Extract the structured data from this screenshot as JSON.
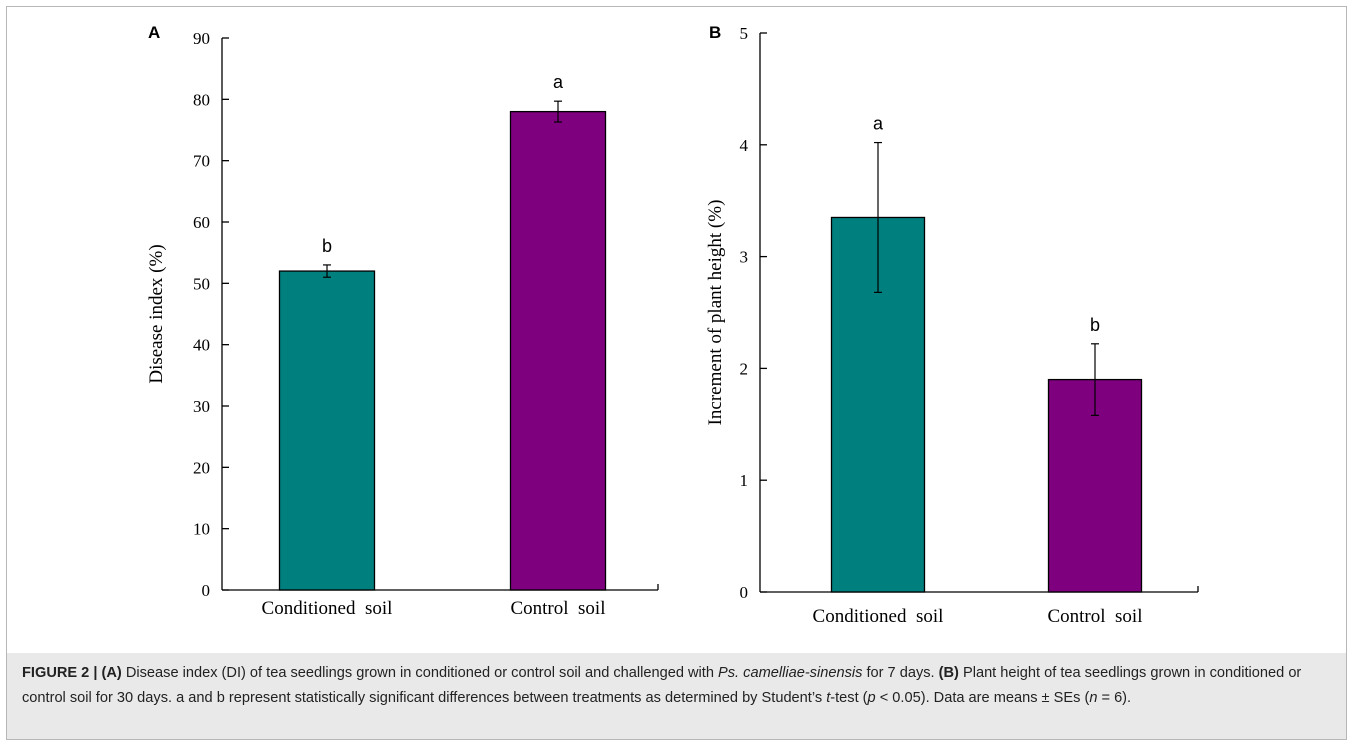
{
  "chart_data": [
    {
      "panel_label": "A",
      "type": "bar",
      "categories": [
        "Conditioned  soil",
        "Control  soil"
      ],
      "values": [
        52,
        78
      ],
      "errors": [
        1.0,
        1.7
      ],
      "significance": [
        "b",
        "a"
      ],
      "colors": [
        "#007f7f",
        "#7f007f"
      ],
      "ylabel": "Disease index (%)",
      "xlabel": "",
      "ylim": [
        0,
        90
      ],
      "yticks": [
        "0",
        "10",
        "20",
        "30",
        "40",
        "50",
        "60",
        "70",
        "80",
        "90"
      ],
      "grid": false
    },
    {
      "panel_label": "B",
      "type": "bar",
      "categories": [
        "Conditioned  soil",
        "Control  soil"
      ],
      "values": [
        3.35,
        1.9
      ],
      "errors": [
        0.67,
        0.32
      ],
      "significance": [
        "a",
        "b"
      ],
      "colors": [
        "#007f7f",
        "#7f007f"
      ],
      "ylabel": "Increment of plant height (%)",
      "xlabel": "",
      "ylim": [
        0,
        5
      ],
      "yticks": [
        "0",
        "1",
        "2",
        "3",
        "4",
        "5"
      ],
      "grid": false
    }
  ],
  "caption": {
    "figure_label": "FIGURE 2 |",
    "a_label": "(A)",
    "a_text_1": " Disease index (DI) of tea seedlings grown in conditioned or control soil and challenged with ",
    "a_species": "Ps. camelliae-sinensis",
    "a_text_2": " for 7 days. ",
    "b_label": "(B)",
    "b_text": " Plant height of tea seedlings grown in conditioned or control soil for 30 days. a and b represent statistically significant differences between treatments as determined by Student’s ",
    "t_italic": "t",
    "after_t": "-test (",
    "p_italic": "p",
    "p_text": " < 0.05). Data are means ± SEs (",
    "n_italic": "n",
    "n_text": " = 6)."
  }
}
